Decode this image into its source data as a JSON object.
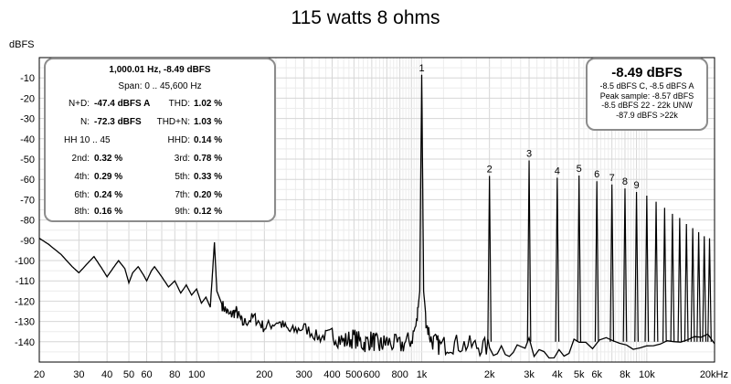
{
  "chart_data": {
    "type": "line",
    "title": "115 watts 8 ohms",
    "ylabel": "dBFS",
    "xscale": "log",
    "xlim": [
      20,
      20000
    ],
    "ylim": [
      -150,
      0
    ],
    "grid": true,
    "x_ticks": [
      {
        "v": 20,
        "t": "20"
      },
      {
        "v": 30,
        "t": "30"
      },
      {
        "v": 40,
        "t": "40"
      },
      {
        "v": 50,
        "t": "50"
      },
      {
        "v": 60,
        "t": "60"
      },
      {
        "v": 80,
        "t": "80"
      },
      {
        "v": 100,
        "t": "100"
      },
      {
        "v": 200,
        "t": "200"
      },
      {
        "v": 300,
        "t": "300"
      },
      {
        "v": 400,
        "t": "400"
      },
      {
        "v": 500,
        "t": "500"
      },
      {
        "v": 600,
        "t": "600"
      },
      {
        "v": 800,
        "t": "800"
      },
      {
        "v": 1000,
        "t": "1k"
      },
      {
        "v": 2000,
        "t": "2k"
      },
      {
        "v": 3000,
        "t": "3k"
      },
      {
        "v": 4000,
        "t": "4k"
      },
      {
        "v": 5000,
        "t": "5k"
      },
      {
        "v": 6000,
        "t": "6k"
      },
      {
        "v": 8000,
        "t": "8k"
      },
      {
        "v": 10000,
        "t": "10k"
      },
      {
        "v": 20000,
        "t": "20kHz"
      }
    ],
    "y_ticks": [
      {
        "v": -10,
        "t": "-10"
      },
      {
        "v": -20,
        "t": "-20"
      },
      {
        "v": -30,
        "t": "-30"
      },
      {
        "v": -40,
        "t": "-40"
      },
      {
        "v": -50,
        "t": "-50"
      },
      {
        "v": -60,
        "t": "-60"
      },
      {
        "v": -70,
        "t": "-70"
      },
      {
        "v": -80,
        "t": "-80"
      },
      {
        "v": -90,
        "t": "-90"
      },
      {
        "v": -100,
        "t": "-100"
      },
      {
        "v": -110,
        "t": "-110"
      },
      {
        "v": -120,
        "t": "-120"
      },
      {
        "v": -130,
        "t": "-130"
      },
      {
        "v": -140,
        "t": "-140"
      }
    ],
    "harmonics": [
      {
        "n": "1",
        "freq": 1000,
        "level": -8.49
      },
      {
        "n": "2",
        "freq": 2000,
        "level": -58.3
      },
      {
        "n": "3",
        "freq": 3000,
        "level": -50.7
      },
      {
        "n": "4",
        "freq": 4000,
        "level": -59.2
      },
      {
        "n": "5",
        "freq": 5000,
        "level": -58.1
      },
      {
        "n": "6",
        "freq": 6000,
        "level": -60.9
      },
      {
        "n": "7",
        "freq": 7000,
        "level": -62.5
      },
      {
        "n": "8",
        "freq": 8000,
        "level": -64.5
      },
      {
        "n": "9",
        "freq": 9000,
        "level": -66.2
      }
    ],
    "higher_harmonics": [
      {
        "freq": 10000,
        "level": -68
      },
      {
        "freq": 11000,
        "level": -71
      },
      {
        "freq": 12000,
        "level": -74
      },
      {
        "freq": 13000,
        "level": -77
      },
      {
        "freq": 14000,
        "level": -79
      },
      {
        "freq": 15000,
        "level": -82
      },
      {
        "freq": 16000,
        "level": -84
      },
      {
        "freq": 17000,
        "level": -86
      },
      {
        "freq": 18000,
        "level": -88
      },
      {
        "freq": 19000,
        "level": -89
      }
    ],
    "low_freq_curve": [
      [
        20,
        -89
      ],
      [
        22,
        -92
      ],
      [
        25,
        -97
      ],
      [
        28,
        -103
      ],
      [
        30,
        -106
      ],
      [
        33,
        -101
      ],
      [
        35,
        -98
      ],
      [
        38,
        -104
      ],
      [
        40,
        -108
      ],
      [
        43,
        -103
      ],
      [
        45,
        -100
      ],
      [
        48,
        -104
      ],
      [
        50,
        -111
      ],
      [
        52,
        -106
      ],
      [
        55,
        -103
      ],
      [
        58,
        -107
      ],
      [
        60,
        -110
      ],
      [
        63,
        -105
      ],
      [
        65,
        -103
      ],
      [
        70,
        -108
      ],
      [
        75,
        -113
      ],
      [
        80,
        -110
      ],
      [
        85,
        -116
      ],
      [
        90,
        -112
      ],
      [
        95,
        -117
      ],
      [
        100,
        -114
      ],
      [
        105,
        -121
      ],
      [
        110,
        -118
      ],
      [
        115,
        -123
      ],
      [
        120,
        -91
      ],
      [
        123,
        -115
      ],
      [
        130,
        -122
      ],
      [
        140,
        -127
      ],
      [
        150,
        -125
      ],
      [
        160,
        -131
      ],
      [
        180,
        -128
      ],
      [
        200,
        -133
      ],
      [
        230,
        -130
      ],
      [
        260,
        -135
      ],
      [
        300,
        -133
      ],
      [
        350,
        -138
      ],
      [
        400,
        -136
      ],
      [
        450,
        -140
      ],
      [
        500,
        -138
      ],
      [
        550,
        -141
      ],
      [
        600,
        -139
      ],
      [
        650,
        -142
      ],
      [
        700,
        -140
      ],
      [
        800,
        -142
      ],
      [
        900,
        -139
      ],
      [
        950,
        -131
      ],
      [
        980,
        -115
      ],
      [
        1000,
        -8.49
      ],
      [
        1020,
        -115
      ],
      [
        1050,
        -131
      ],
      [
        1100,
        -139
      ],
      [
        1200,
        -142
      ],
      [
        1400,
        -141
      ],
      [
        1700,
        -142
      ],
      [
        2000,
        -143
      ],
      [
        3000,
        -143
      ],
      [
        5000,
        -143
      ],
      [
        10000,
        -142
      ],
      [
        20000,
        -141
      ]
    ]
  },
  "stats": {
    "header": "1,000.01 Hz, -8.49 dBFS",
    "span": "Span: 0 .. 45,600 Hz",
    "nd_label": "N+D:",
    "nd_value": "-47.4 dBFS A",
    "thd_label": "THD:",
    "thd_value": "1.02 %",
    "n_label": "N:",
    "n_value": "-72.3 dBFS",
    "thdn_label": "THD+N:",
    "thdn_value": "1.03 %",
    "hh_label": "HH 10 .. 45",
    "hhd_label": "HHD:",
    "hhd_value": "0.14 %",
    "h2_label": "2nd:",
    "h2_value": "0.32 %",
    "h3_label": "3rd:",
    "h3_value": "0.78 %",
    "h4_label": "4th:",
    "h4_value": "0.29 %",
    "h5_label": "5th:",
    "h5_value": "0.33 %",
    "h6_label": "6th:",
    "h6_value": "0.24 %",
    "h7_label": "7th:",
    "h7_value": "0.20 %",
    "h8_label": "8th:",
    "h8_value": "0.16 %",
    "h9_label": "9th:",
    "h9_value": "0.12 %"
  },
  "level": {
    "big": "-8.49 dBFS",
    "line1": "-8.5 dBFS C, -8.5 dBFS A",
    "line2": "Peak sample: -8.57 dBFS",
    "line3": "-8.5 dBFS 22 - 22k UNW",
    "line4": "-87.9 dBFS >22k"
  },
  "colors": {
    "trace": "#000000",
    "grid": "#d6d6d6",
    "panel_border": "#8c8c8c"
  }
}
